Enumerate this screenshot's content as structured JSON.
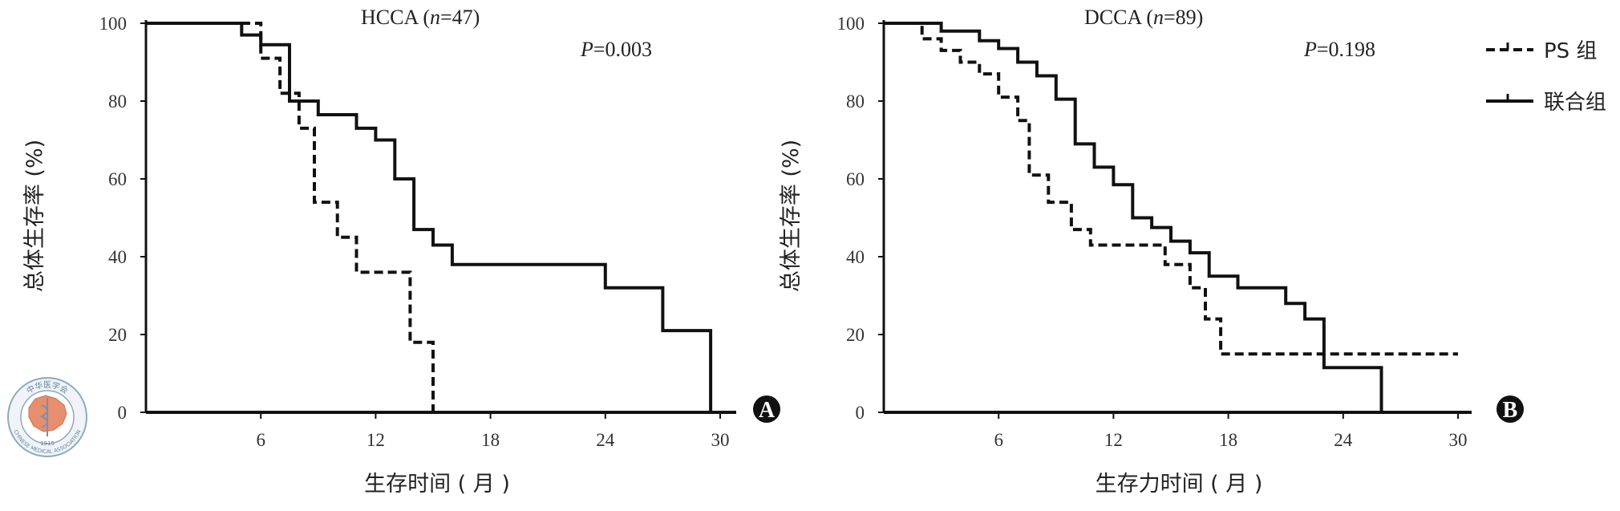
{
  "chart_data": [
    {
      "type": "line",
      "panel_label": "A",
      "title": "HCCA",
      "n_text": "n",
      "n_value": "=47)",
      "p_label": "P",
      "p_value": "=0.003",
      "xlabel": "生存时间 ( 月 )",
      "ylabel": "总体生存率 (%)",
      "xlim": [
        0,
        30
      ],
      "ylim": [
        0,
        100
      ],
      "x_ticks": [
        "6",
        "12",
        "18",
        "24",
        "30"
      ],
      "y_ticks": [
        "100",
        "80",
        "60",
        "40",
        "20",
        "0"
      ],
      "series": [
        {
          "name": "PS 组",
          "style": "dashed",
          "x": [
            0,
            6,
            6,
            7,
            7,
            8,
            8,
            8.8,
            8.8,
            10,
            10,
            11,
            11,
            13.8,
            13.8,
            15,
            15
          ],
          "y": [
            100,
            100,
            91,
            91,
            82,
            82,
            73,
            73,
            54,
            54,
            45,
            45,
            36,
            36,
            18,
            18,
            0
          ]
        },
        {
          "name": "联合组",
          "style": "solid",
          "x": [
            0,
            5,
            5,
            6,
            6,
            7.5,
            7.5,
            9,
            9,
            11,
            11,
            12,
            12,
            13,
            13,
            14,
            14,
            15,
            15,
            16,
            16,
            17,
            17,
            24,
            24,
            27,
            27,
            29.5,
            29.5
          ],
          "y": [
            100,
            100,
            97,
            97,
            94.5,
            94.5,
            80,
            80,
            76.5,
            76.5,
            73,
            73,
            70,
            70,
            60,
            60,
            47,
            47,
            43,
            43,
            38,
            38,
            38,
            38,
            32,
            32,
            21,
            21,
            0
          ]
        }
      ]
    },
    {
      "type": "line",
      "panel_label": "B",
      "title": "DCCA",
      "n_text": "n",
      "n_value": "=89)",
      "p_label": "P",
      "p_value": "=0.198",
      "xlabel": "生存力时间 ( 月 )",
      "ylabel": "总体生存率 (%)",
      "xlim": [
        0,
        30
      ],
      "ylim": [
        0,
        100
      ],
      "x_ticks": [
        "6",
        "12",
        "18",
        "24",
        "30"
      ],
      "y_ticks": [
        "100",
        "80",
        "60",
        "40",
        "20",
        "0"
      ],
      "series": [
        {
          "name": "PS 组",
          "style": "dashed",
          "x": [
            0,
            2,
            2,
            3,
            3,
            4,
            4,
            5,
            5,
            6,
            6,
            7,
            7,
            7.6,
            7.6,
            8.6,
            8.6,
            9.8,
            9.8,
            10.8,
            10.8,
            14.7,
            14.7,
            16,
            16,
            16.8,
            16.8,
            17.6,
            17.6,
            30
          ],
          "y": [
            100,
            100,
            96,
            96,
            93,
            93,
            90,
            90,
            87,
            87,
            81,
            81,
            75,
            75,
            61,
            61,
            54,
            54,
            47,
            47,
            43,
            43,
            38,
            38,
            32,
            32,
            24,
            24,
            15,
            15
          ]
        },
        {
          "name": "联合组",
          "style": "solid",
          "x": [
            0,
            3,
            3,
            5,
            5,
            6,
            6,
            7,
            7,
            8,
            8,
            9,
            9,
            10,
            10,
            11,
            11,
            12,
            12,
            13,
            13,
            14,
            14,
            15,
            15,
            16,
            16,
            17,
            17,
            18.5,
            18.5,
            21,
            21,
            22,
            22,
            23,
            23,
            26,
            26
          ],
          "y": [
            100,
            100,
            98,
            98,
            95.5,
            95.5,
            93.5,
            93.5,
            90,
            90,
            86.5,
            86.5,
            80.5,
            80.5,
            69,
            69,
            63,
            63,
            58.5,
            58.5,
            50,
            50,
            47.5,
            47.5,
            44,
            44,
            41,
            41,
            35,
            35,
            32,
            32,
            28,
            28,
            24,
            24,
            11.5,
            11.5,
            0
          ]
        }
      ]
    }
  ],
  "legend": {
    "items": [
      {
        "label": "PS 组",
        "style": "dashed"
      },
      {
        "label": "联合组",
        "style": "solid"
      }
    ]
  },
  "colors": {
    "line": "#111111",
    "badge": "#111111"
  },
  "logo": {
    "text_top": "中华医学会",
    "text_bottom": "CHINESE MEDICAL ASSOCIATION",
    "year": "1915"
  }
}
